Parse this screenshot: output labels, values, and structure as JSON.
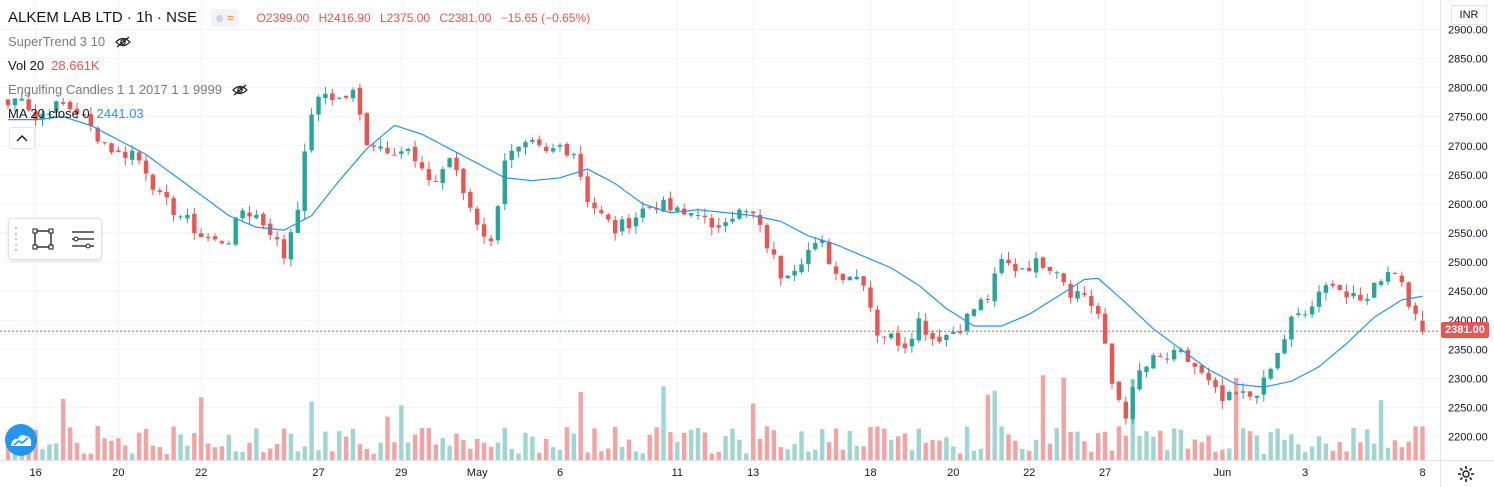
{
  "header": {
    "symbol": "ALKEM LAB LTD · 1h · NSE",
    "open": "O2399.00",
    "high": "H2416.90",
    "low": "L2375.00",
    "close": "C2381.00",
    "change": "−15.65 (−0.65%)"
  },
  "indicators": {
    "supertrend": "SuperTrend 3 10",
    "vol": "Vol 20",
    "vol_value": "28.661K",
    "engulfing": "Engulfing Candles 1 1 2017 1 1 9999",
    "ma": "MA 20 close 0",
    "ma_value": "2441.03"
  },
  "currency": "INR",
  "last_price_label": "2381.00",
  "colors": {
    "up": "#26a69a",
    "down": "#ef5350",
    "up_volume": "#9fd6cf",
    "down_volume": "#f5a3a2",
    "ma_line": "#2196f3",
    "grid": "#f0f3fa",
    "text": "#131722"
  },
  "icons": [
    "eye-off-icon",
    "chevron-up-icon",
    "rectangle-tool-icon",
    "menu-lines-icon",
    "settings-gear-icon",
    "tradingview-logo-icon"
  ],
  "chart_data": {
    "type": "candlestick",
    "y_range": [
      2175,
      2910
    ],
    "y_ticks": [
      2900,
      2850,
      2800,
      2750,
      2700,
      2650,
      2600,
      2550,
      2500,
      2450,
      2400,
      2350,
      2300,
      2250,
      2200
    ],
    "y_tick_labels": [
      "2900.00",
      "2850.00",
      "2800.00",
      "2750.00",
      "2700.00",
      "2650.00",
      "2600.00",
      "2550.00",
      "2500.00",
      "2450.00",
      "2400.00",
      "2350.00",
      "2300.00",
      "2250.00",
      "2200.00"
    ],
    "x_labels": [
      {
        "label": "16",
        "bar": 4
      },
      {
        "label": "20",
        "bar": 16
      },
      {
        "label": "22",
        "bar": 28
      },
      {
        "label": "27",
        "bar": 45
      },
      {
        "label": "29",
        "bar": 57
      },
      {
        "label": "May",
        "bar": 68
      },
      {
        "label": "6",
        "bar": 80
      },
      {
        "label": "11",
        "bar": 97
      },
      {
        "label": "13",
        "bar": 108
      },
      {
        "label": "18",
        "bar": 125
      },
      {
        "label": "20",
        "bar": 137
      },
      {
        "label": "22",
        "bar": 148
      },
      {
        "label": "27",
        "bar": 159
      },
      {
        "label": "Jun",
        "bar": 176
      },
      {
        "label": "3",
        "bar": 188
      },
      {
        "label": "8",
        "bar": 205
      }
    ],
    "last_price": 2381.0,
    "close_anchors": [
      [
        0,
        2770
      ],
      [
        2,
        2790
      ],
      [
        4,
        2745
      ],
      [
        6,
        2765
      ],
      [
        8,
        2770
      ],
      [
        10,
        2760
      ],
      [
        12,
        2730
      ],
      [
        14,
        2705
      ],
      [
        16,
        2685
      ],
      [
        18,
        2690
      ],
      [
        20,
        2660
      ],
      [
        22,
        2610
      ],
      [
        24,
        2590
      ],
      [
        26,
        2570
      ],
      [
        28,
        2545
      ],
      [
        30,
        2535
      ],
      [
        32,
        2540
      ],
      [
        34,
        2590
      ],
      [
        36,
        2580
      ],
      [
        38,
        2555
      ],
      [
        40,
        2510
      ],
      [
        42,
        2600
      ],
      [
        44,
        2760
      ],
      [
        46,
        2790
      ],
      [
        48,
        2780
      ],
      [
        50,
        2790
      ],
      [
        52,
        2710
      ],
      [
        54,
        2700
      ],
      [
        56,
        2695
      ],
      [
        58,
        2690
      ],
      [
        60,
        2650
      ],
      [
        62,
        2640
      ],
      [
        64,
        2680
      ],
      [
        66,
        2620
      ],
      [
        68,
        2570
      ],
      [
        70,
        2530
      ],
      [
        72,
        2680
      ],
      [
        74,
        2690
      ],
      [
        76,
        2700
      ],
      [
        78,
        2685
      ],
      [
        80,
        2700
      ],
      [
        82,
        2690
      ],
      [
        84,
        2610
      ],
      [
        86,
        2580
      ],
      [
        88,
        2555
      ],
      [
        90,
        2570
      ],
      [
        92,
        2590
      ],
      [
        94,
        2600
      ],
      [
        96,
        2590
      ],
      [
        98,
        2580
      ],
      [
        100,
        2590
      ],
      [
        102,
        2550
      ],
      [
        104,
        2580
      ],
      [
        106,
        2585
      ],
      [
        108,
        2580
      ],
      [
        110,
        2530
      ],
      [
        112,
        2480
      ],
      [
        114,
        2495
      ],
      [
        116,
        2520
      ],
      [
        118,
        2530
      ],
      [
        120,
        2480
      ],
      [
        122,
        2480
      ],
      [
        124,
        2470
      ],
      [
        126,
        2380
      ],
      [
        128,
        2370
      ],
      [
        130,
        2360
      ],
      [
        132,
        2400
      ],
      [
        134,
        2370
      ],
      [
        136,
        2375
      ],
      [
        138,
        2390
      ],
      [
        140,
        2420
      ],
      [
        142,
        2440
      ],
      [
        144,
        2500
      ],
      [
        146,
        2490
      ],
      [
        148,
        2495
      ],
      [
        150,
        2500
      ],
      [
        152,
        2490
      ],
      [
        154,
        2450
      ],
      [
        156,
        2445
      ],
      [
        158,
        2410
      ],
      [
        160,
        2290
      ],
      [
        162,
        2240
      ],
      [
        164,
        2310
      ],
      [
        166,
        2330
      ],
      [
        168,
        2335
      ],
      [
        170,
        2340
      ],
      [
        172,
        2320
      ],
      [
        174,
        2290
      ],
      [
        176,
        2260
      ],
      [
        178,
        2270
      ],
      [
        180,
        2270
      ],
      [
        182,
        2290
      ],
      [
        184,
        2340
      ],
      [
        186,
        2400
      ],
      [
        188,
        2410
      ],
      [
        190,
        2440
      ],
      [
        192,
        2470
      ],
      [
        194,
        2440
      ],
      [
        196,
        2430
      ],
      [
        198,
        2460
      ],
      [
        200,
        2490
      ],
      [
        202,
        2470
      ],
      [
        204,
        2400
      ],
      [
        205,
        2381
      ]
    ],
    "ma_anchors": [
      [
        0,
        2745
      ],
      [
        4,
        2745
      ],
      [
        8,
        2750
      ],
      [
        12,
        2735
      ],
      [
        16,
        2710
      ],
      [
        20,
        2685
      ],
      [
        24,
        2650
      ],
      [
        28,
        2615
      ],
      [
        32,
        2580
      ],
      [
        36,
        2560
      ],
      [
        40,
        2555
      ],
      [
        44,
        2580
      ],
      [
        48,
        2640
      ],
      [
        52,
        2695
      ],
      [
        56,
        2735
      ],
      [
        60,
        2720
      ],
      [
        64,
        2695
      ],
      [
        68,
        2670
      ],
      [
        72,
        2645
      ],
      [
        76,
        2640
      ],
      [
        80,
        2645
      ],
      [
        84,
        2660
      ],
      [
        88,
        2635
      ],
      [
        92,
        2600
      ],
      [
        96,
        2585
      ],
      [
        100,
        2590
      ],
      [
        104,
        2585
      ],
      [
        108,
        2580
      ],
      [
        112,
        2570
      ],
      [
        116,
        2545
      ],
      [
        120,
        2530
      ],
      [
        124,
        2510
      ],
      [
        128,
        2490
      ],
      [
        132,
        2460
      ],
      [
        136,
        2420
      ],
      [
        140,
        2390
      ],
      [
        144,
        2390
      ],
      [
        148,
        2410
      ],
      [
        152,
        2440
      ],
      [
        156,
        2470
      ],
      [
        158,
        2472
      ],
      [
        162,
        2430
      ],
      [
        166,
        2385
      ],
      [
        170,
        2350
      ],
      [
        174,
        2315
      ],
      [
        178,
        2290
      ],
      [
        182,
        2285
      ],
      [
        186,
        2295
      ],
      [
        190,
        2320
      ],
      [
        194,
        2360
      ],
      [
        198,
        2405
      ],
      [
        202,
        2435
      ],
      [
        205,
        2441
      ]
    ],
    "volume_bars": 206
  }
}
